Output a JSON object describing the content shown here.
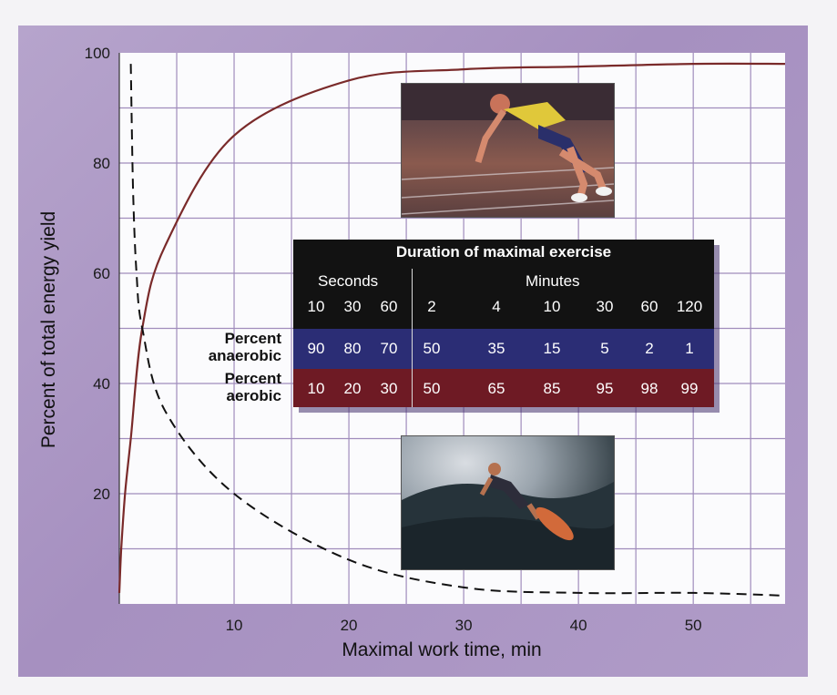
{
  "chart_data": {
    "type": "line",
    "xlabel": "Maximal work time, min",
    "ylabel": "Percent of total energy yield",
    "xlim": [
      0,
      58
    ],
    "ylim": [
      0,
      100
    ],
    "x_ticks": [
      10,
      20,
      30,
      40,
      50
    ],
    "y_ticks": [
      20,
      40,
      60,
      80,
      100
    ],
    "grid": true,
    "series": [
      {
        "style": "solid",
        "color": "#7a2a2a",
        "x": [
          0,
          0.17,
          0.5,
          1,
          2,
          4,
          10,
          20,
          30,
          40,
          50,
          58
        ],
        "y": [
          2,
          10,
          20,
          30,
          50,
          65,
          85,
          95,
          97,
          97.5,
          98,
          98
        ]
      },
      {
        "style": "dashed",
        "color": "#111111",
        "x": [
          1,
          1.2,
          1.5,
          2,
          4,
          10,
          20,
          30,
          40,
          50,
          58
        ],
        "y": [
          98,
          75,
          60,
          50,
          35,
          20,
          8,
          3,
          2,
          2,
          1.5
        ]
      }
    ]
  },
  "table": {
    "title": "Duration of maximal exercise",
    "seconds_label": "Seconds",
    "minutes_label": "Minutes",
    "durations": [
      "10",
      "30",
      "60",
      "2",
      "4",
      "10",
      "30",
      "60",
      "120"
    ],
    "anaerobic_label_line1": "Percent",
    "anaerobic_label_line2": "anaerobic",
    "aerobic_label_line1": "Percent",
    "aerobic_label_line2": "aerobic",
    "anaerobic": [
      "90",
      "80",
      "70",
      "50",
      "35",
      "15",
      "5",
      "2",
      "1"
    ],
    "aerobic": [
      "10",
      "20",
      "30",
      "50",
      "65",
      "85",
      "95",
      "98",
      "99"
    ],
    "anaerobic_row_color": "#2b2d75",
    "aerobic_row_color": "#6e1a24"
  },
  "photos": {
    "top": "sprinter-photo",
    "bottom": "surfer-photo"
  }
}
